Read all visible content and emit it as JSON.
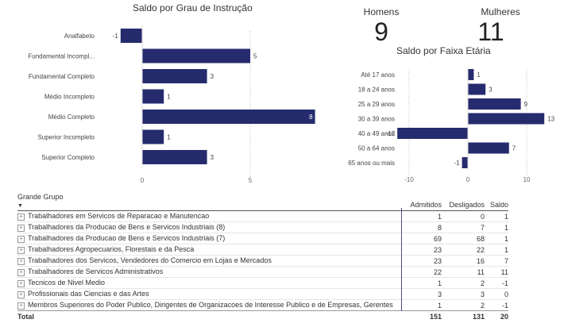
{
  "education_chart": {
    "title": "Saldo por Grau de Instrução",
    "chart_data": {
      "type": "bar",
      "orientation": "horizontal",
      "categories": [
        "Analfabeto",
        "Fundamental Incompl...",
        "Fundamental Completo",
        "Médio Incompleto",
        "Médio Completo",
        "Superior Incompleto",
        "Superior Completo"
      ],
      "values": [
        -1,
        5,
        3,
        1,
        8,
        1,
        3
      ],
      "xlim": [
        -1,
        8
      ],
      "xticks": [
        0,
        5
      ],
      "grid": true,
      "color": "#262b6e"
    }
  },
  "kpis": {
    "men_label": "Homens",
    "men_value": "9",
    "women_label": "Mulheres",
    "women_value": "11"
  },
  "age_chart": {
    "title": "Saldo por Faixa Etária",
    "chart_data": {
      "type": "bar",
      "orientation": "horizontal",
      "categories": [
        "Até 17 anos",
        "18 a 24 anos",
        "25 a 29 anos",
        "30 a 39 anos",
        "40 a 49 anos",
        "50 a 64 anos",
        "65 anos ou mais"
      ],
      "values": [
        1,
        3,
        9,
        13,
        -12,
        7,
        -1
      ],
      "xlim": [
        -12,
        13
      ],
      "xticks": [
        -10,
        0,
        10
      ],
      "grid": true,
      "color": "#262b6e"
    }
  },
  "table": {
    "headers": [
      "Grande Grupo",
      "Admitidos",
      "Desligados",
      "Saldo"
    ],
    "rows": [
      {
        "group": "Trabalhadores em Servicos de Reparacao e Manutencao",
        "admitidos": "1",
        "desligados": "0",
        "saldo": "1"
      },
      {
        "group": "Trabalhadores da Producao de Bens e Servicos Industriais (8)",
        "admitidos": "8",
        "desligados": "7",
        "saldo": "1"
      },
      {
        "group": "Trabalhadores da Producao de Bens e Servicos Industriais (7)",
        "admitidos": "69",
        "desligados": "68",
        "saldo": "1"
      },
      {
        "group": "Trabalhadores Agropecuarios, Florestais e da Pesca",
        "admitidos": "23",
        "desligados": "22",
        "saldo": "1"
      },
      {
        "group": "Trabalhadores dos Servicos, Vendedores do Comercio em Lojas e Mercados",
        "admitidos": "23",
        "desligados": "16",
        "saldo": "7"
      },
      {
        "group": "Trabalhadores de Servicos Administrativos",
        "admitidos": "22",
        "desligados": "11",
        "saldo": "11"
      },
      {
        "group": "Tecnicos de Nivel Medio",
        "admitidos": "1",
        "desligados": "2",
        "saldo": "-1"
      },
      {
        "group": "Profissionais das Ciencias e das Artes",
        "admitidos": "3",
        "desligados": "3",
        "saldo": "0"
      },
      {
        "group": "Membros Superiores do Poder Publico, Dirigentes de Organizacoes de Interesse Publico e de Empresas, Gerentes",
        "admitidos": "1",
        "desligados": "2",
        "saldo": "-1"
      }
    ],
    "total": {
      "label": "Total",
      "admitidos": "151",
      "desligados": "131",
      "saldo": "20"
    }
  }
}
